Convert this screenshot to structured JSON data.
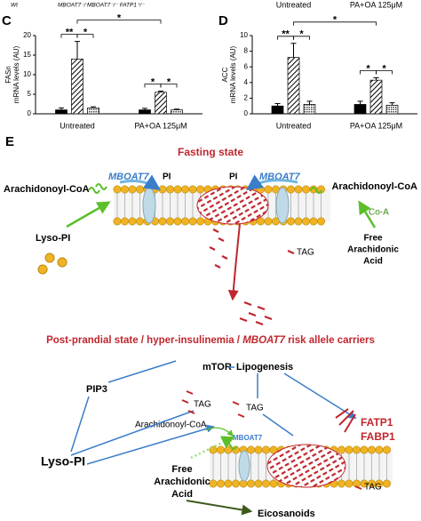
{
  "chart_data": [
    {
      "type": "bar",
      "panel": "C",
      "ylabel": [
        "FASn",
        "mRNA levels (AU)"
      ],
      "categories": [
        "Untreated",
        "PA+OA 125μM"
      ],
      "series": [
        {
          "name": "Wt",
          "color": "#000000",
          "pattern": "solid",
          "values": [
            1,
            1
          ],
          "errors": [
            0.5,
            0.4
          ]
        },
        {
          "name": "MBOAT7⁻/⁻",
          "color": "#000000",
          "pattern": "hatch",
          "values": [
            14,
            5.5
          ],
          "errors": [
            4.5,
            0.3
          ]
        },
        {
          "name": "MBOAT7⁻/⁻ FATP1⁺/⁻",
          "color": "#000000",
          "pattern": "dots",
          "values": [
            1.5,
            1
          ],
          "errors": [
            0.3,
            0.2
          ]
        }
      ],
      "ylim": [
        0,
        20
      ],
      "yticks": [
        0,
        5,
        10,
        15,
        20
      ],
      "significance": [
        "**",
        "*",
        "*",
        "*",
        "*"
      ]
    },
    {
      "type": "bar",
      "panel": "D",
      "ylabel": [
        "ACC",
        "mRNA levels (AU)"
      ],
      "header_labels": [
        "Untreated",
        "PA+OA 125μM"
      ],
      "categories": [
        "Untreated",
        "PA+OA 125μM"
      ],
      "series": [
        {
          "color": "#000000",
          "pattern": "solid",
          "values": [
            1,
            1.2
          ],
          "errors": [
            0.3,
            0.4
          ]
        },
        {
          "color": "#000000",
          "pattern": "hatch",
          "values": [
            7.2,
            4.3
          ],
          "errors": [
            1.8,
            0.3
          ]
        },
        {
          "color": "#000000",
          "pattern": "dots",
          "values": [
            1.2,
            1.1
          ],
          "errors": [
            0.4,
            0.3
          ]
        }
      ],
      "ylim": [
        0,
        10
      ],
      "yticks": [
        0,
        2,
        4,
        6,
        8,
        10
      ],
      "significance": [
        "**",
        "*",
        "*",
        "*",
        "*"
      ]
    }
  ],
  "diagram": {
    "label": "E",
    "fasting": {
      "title": "Fasting state",
      "acyl_coa_left": "Arachidonoyl-CoA",
      "mboat7_left": "MBOAT7",
      "pi_left": "PI",
      "pi_right": "PI",
      "mboat7_right": "MBOAT7",
      "acyl_coa_right": "Arachidonoyl-CoA",
      "coa": "Co-A",
      "lyso_pi": "Lyso-PI",
      "free_aa": [
        "Free",
        "Arachidonic",
        "Acid"
      ],
      "tag": "TAG"
    },
    "postprandial": {
      "title": [
        "Post-prandial state / hyper-insulinemia / ",
        "MBOAT7",
        " risk allele carriers"
      ],
      "mtor": "mTOR",
      "lipogenesis": "Lipogenesis",
      "pip3": "PIP3",
      "tag_1": "TAG",
      "tag_2": "TAG",
      "acyl_coa": "Arachidonoyl-CoA",
      "mboat7": "MBOAT7",
      "fatp1": "FATP1",
      "fabp1": "FABP1",
      "lyso_pi": "Lyso-PI",
      "free_aa": [
        "Free",
        "Arachidonic",
        "Acid"
      ],
      "tag_3": "TAG",
      "eicosanoids": "Eicosanoids"
    }
  }
}
